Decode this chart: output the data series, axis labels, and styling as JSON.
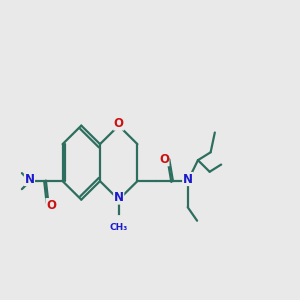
{
  "bg_color": "#e9e9e9",
  "bond_color": "#2d6e5e",
  "N_color": "#1a1acc",
  "O_color": "#cc1111",
  "line_width": 1.6,
  "font_size": 8.5,
  "fig_size": [
    3.0,
    3.0
  ],
  "dpi": 100,
  "xlim": [
    0,
    12
  ],
  "ylim": [
    2,
    9
  ]
}
